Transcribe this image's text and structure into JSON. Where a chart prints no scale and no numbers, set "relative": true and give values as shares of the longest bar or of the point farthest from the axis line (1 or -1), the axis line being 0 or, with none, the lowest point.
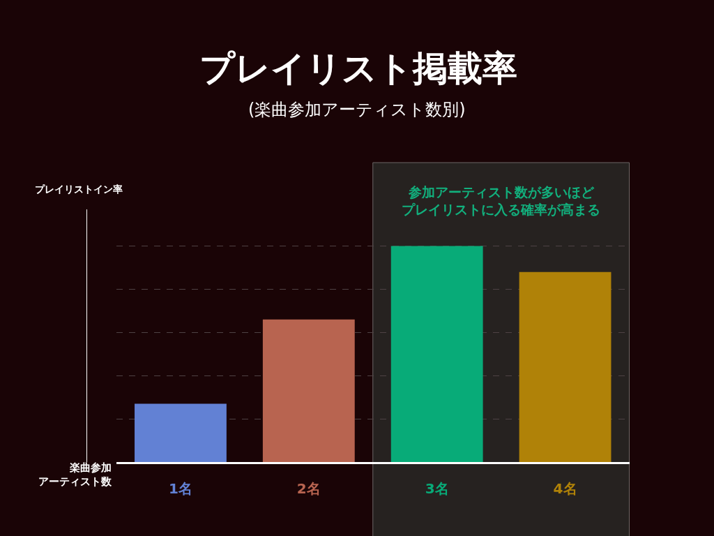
{
  "chart_data": {
    "type": "bar",
    "title": "プレイリスト掲載率",
    "subtitle": "(楽曲参加アーティスト数別)",
    "xlabel": "楽曲参加アーティスト数",
    "categories": [
      "1名",
      "2名",
      "3名",
      "4名"
    ],
    "values": [
      0.27,
      0.66,
      1,
      0.88
    ],
    "colors": [
      "#6281d4",
      "#b86450",
      "#08ab78",
      "#b08208"
    ],
    "relative": true,
    "grid": "y",
    "bands": [
      {
        "axis": "x",
        "from": "3名",
        "to": "4名",
        "label": "参加アーティスト数が多いほどプレイリストに入る確率が高まる",
        "color": "#262220"
      }
    ],
    "annotations": [
      "プレイリストイン率"
    ]
  }
}
